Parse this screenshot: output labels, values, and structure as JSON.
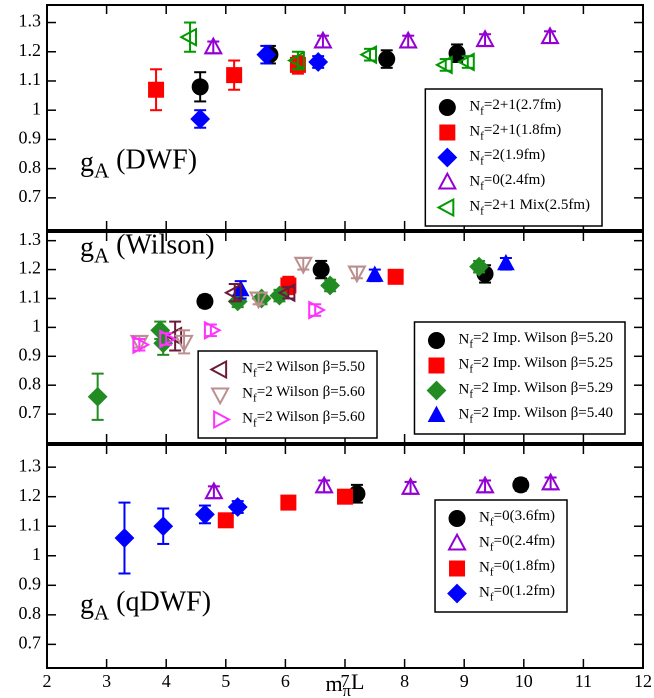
{
  "chart_data": [
    {
      "type": "scatter",
      "annotation": "gA (DWF)",
      "xlim": [
        2,
        12
      ],
      "xticks": [
        2,
        3,
        4,
        5,
        6,
        7,
        8,
        9,
        10,
        11,
        12
      ],
      "show_xtick_labels": false,
      "ylim": [
        0.59,
        1.36
      ],
      "yticks": [
        0.7,
        0.8,
        0.9,
        1,
        1.1,
        1.2,
        1.3
      ],
      "legend": "lower right",
      "series": [
        {
          "name": "Nf=2+1(2.7fm)",
          "color": "#000000",
          "marker": "circle",
          "filled": true,
          "x": [
            4.57,
            5.74,
            7.7,
            8.88
          ],
          "values": [
            1.08,
            1.19,
            1.175,
            1.195
          ],
          "errors": [
            0.05,
            0.03,
            0.03,
            0.03
          ]
        },
        {
          "name": "Nf=2+1(1.8fm)",
          "color": "#ff0000",
          "marker": "square",
          "filled": true,
          "x": [
            3.83,
            5.14,
            6.21
          ],
          "values": [
            1.07,
            1.12,
            1.155
          ],
          "errors": [
            0.07,
            0.05,
            0.03
          ]
        },
        {
          "name": "Nf=2(1.9fm)",
          "color": "#0000ff",
          "marker": "diamond",
          "filled": true,
          "x": [
            4.57,
            5.68,
            6.55
          ],
          "values": [
            0.97,
            1.19,
            1.165
          ],
          "errors": [
            0.03,
            0.03,
            0.02
          ]
        },
        {
          "name": "Nf=0(2.4fm)",
          "color": "#9400d3",
          "marker": "triangle-up",
          "filled": false,
          "x": [
            4.79,
            6.63,
            8.06,
            9.35,
            10.44
          ],
          "values": [
            1.215,
            1.235,
            1.235,
            1.24,
            1.25
          ],
          "errors": [
            0.02,
            0.02,
            0.02,
            0.02,
            0.02
          ]
        },
        {
          "name": "Nf=2+1 Mix(2.5fm)",
          "color": "#009900",
          "marker": "triangle-left",
          "filled": false,
          "x": [
            4.4,
            6.21,
            7.42,
            8.69,
            9.06
          ],
          "values": [
            1.25,
            1.17,
            1.19,
            1.155,
            1.165
          ],
          "errors": [
            0.05,
            0.03,
            0.02,
            0.02,
            0.02
          ]
        }
      ]
    },
    {
      "type": "scatter",
      "annotation": "gA (Wilson)",
      "xlim": [
        2,
        12
      ],
      "xticks": [
        2,
        3,
        4,
        5,
        6,
        7,
        8,
        9,
        10,
        11,
        12
      ],
      "show_xtick_labels": false,
      "ylim": [
        0.6,
        1.33
      ],
      "yticks": [
        0.7,
        0.8,
        0.9,
        1,
        1.1,
        1.2,
        1.3
      ],
      "legend": "lower right",
      "series": [
        {
          "name": "Nf=2 Imp. Wilson β=5.20",
          "color": "#000000",
          "marker": "circle",
          "filled": true,
          "x": [
            4.65,
            6.6,
            9.35
          ],
          "values": [
            1.09,
            1.2,
            1.185
          ],
          "errors": [
            0.02,
            0.03,
            0.03
          ]
        },
        {
          "name": "Nf=2 Imp. Wilson β=5.25",
          "color": "#ff0000",
          "marker": "square",
          "filled": true,
          "x": [
            6.05,
            7.85
          ],
          "values": [
            1.145,
            1.175
          ],
          "errors": [
            0.03,
            0.02
          ]
        },
        {
          "name": "Nf=2 Imp. Wilson β=5.29",
          "color": "#228b22",
          "marker": "diamond",
          "filled": true,
          "x": [
            2.85,
            3.9,
            3.95,
            5.2,
            5.6,
            5.9,
            6.75,
            9.25
          ],
          "values": [
            0.76,
            0.99,
            0.945,
            1.09,
            1.1,
            1.11,
            1.145,
            1.21
          ],
          "errors": [
            0.08,
            0.03,
            0.04,
            0.02,
            0.02,
            0.02,
            0.02,
            0.02
          ]
        },
        {
          "name": "Nf=2 Imp. Wilson β=5.40",
          "color": "#0000ff",
          "marker": "triangle-up",
          "filled": true,
          "x": [
            5.25,
            7.5,
            9.7
          ],
          "values": [
            1.13,
            1.18,
            1.22
          ],
          "errors": [
            0.03,
            0.02,
            0.02
          ]
        },
        {
          "name": "Nf=2 Wilson β=5.50",
          "color": "#6b1a3a",
          "marker": "triangle-left",
          "filled": false,
          "legend": "lower center",
          "x": [
            4.15,
            5.15,
            6.05
          ],
          "values": [
            0.97,
            1.12,
            1.12
          ],
          "errors": [
            0.05,
            0.03,
            0.02
          ]
        },
        {
          "name": "Nf=2 Wilson β=5.60",
          "color": "#bc8f8f",
          "marker": "triangle-down",
          "filled": false,
          "legend": "lower center",
          "x": [
            3.55,
            4.3,
            5.55,
            6.3,
            7.2
          ],
          "values": [
            0.95,
            0.95,
            1.1,
            1.22,
            1.19
          ],
          "errors": [
            0.02,
            0.04,
            0.02,
            0.02,
            0.02
          ]
        },
        {
          "name": "Nf=2 Wilson β=5.60",
          "color": "#ff33ff",
          "marker": "triangle-right",
          "filled": false,
          "legend": "lower center",
          "x": [
            3.55,
            4.0,
            4.75,
            6.5
          ],
          "values": [
            0.94,
            0.96,
            0.99,
            1.06
          ],
          "errors": [
            0.02,
            0.02,
            0.02,
            0.02
          ]
        }
      ]
    },
    {
      "type": "scatter",
      "annotation": "gA (qDWF)",
      "xlabel": "mπL",
      "xlim": [
        2,
        12
      ],
      "xticks": [
        2,
        3,
        4,
        5,
        6,
        7,
        8,
        9,
        10,
        11,
        12
      ],
      "show_xtick_labels": true,
      "ylim": [
        0.62,
        1.375
      ],
      "yticks": [
        0.7,
        0.8,
        0.9,
        1,
        1.1,
        1.2,
        1.3
      ],
      "legend": "lower right",
      "series": [
        {
          "name": "Nf=0(3.6fm)",
          "color": "#000000",
          "marker": "circle",
          "filled": true,
          "x": [
            7.2,
            9.95
          ],
          "values": [
            1.21,
            1.24
          ],
          "errors": [
            0.03,
            0.02
          ]
        },
        {
          "name": "Nf=0(2.4fm)",
          "color": "#9400d3",
          "marker": "triangle-up",
          "filled": false,
          "x": [
            4.8,
            6.65,
            8.1,
            9.35,
            10.45
          ],
          "values": [
            1.215,
            1.235,
            1.23,
            1.235,
            1.245
          ],
          "errors": [
            0.02,
            0.02,
            0.02,
            0.02,
            0.02
          ]
        },
        {
          "name": "Nf=0(1.8fm)",
          "color": "#ff0000",
          "marker": "square",
          "filled": true,
          "x": [
            5.0,
            6.05,
            7.0
          ],
          "values": [
            1.12,
            1.18,
            1.2
          ],
          "errors": [
            0.02,
            0.02,
            0.02
          ]
        },
        {
          "name": "Nf=0(1.2fm)",
          "color": "#0000ff",
          "marker": "diamond",
          "filled": true,
          "x": [
            3.3,
            3.95,
            4.65,
            5.2
          ],
          "values": [
            1.06,
            1.1,
            1.14,
            1.165
          ],
          "errors": [
            0.12,
            0.06,
            0.03,
            0.02
          ]
        }
      ]
    }
  ]
}
